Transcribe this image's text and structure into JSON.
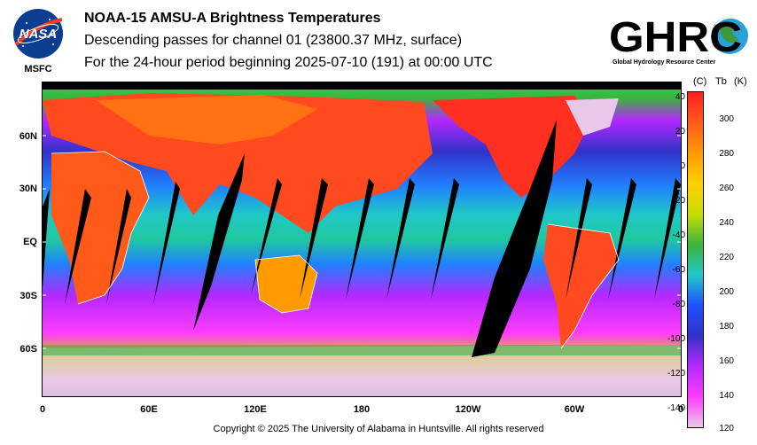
{
  "header": {
    "title": "NOAA-15 AMSU-A Brightness Temperatures",
    "subtitle": "Descending passes for channel 01 (23800.37 MHz, surface)",
    "period": "For the 24-hour period beginning 2025-07-10 (191) at 00:00 UTC"
  },
  "logos": {
    "nasa_text": "NASA",
    "msfc_text": "MSFC",
    "ghrc_text": "GHRC",
    "ghrc_caption": "Global Hydrology Resource Center"
  },
  "map": {
    "lat_labels": [
      "60N",
      "30N",
      "EQ",
      "30S",
      "60S"
    ],
    "lon_labels": [
      "0",
      "60E",
      "120E",
      "180",
      "120W",
      "60W",
      "0"
    ],
    "no_data_color": "#000000",
    "coastline_color": "#ffffff"
  },
  "colorbar": {
    "unit_celsius": "(C)",
    "symbol": "Tb",
    "unit_kelvin": "(K)",
    "celsius_ticks": [
      "40",
      "20",
      "0",
      "-20",
      "-40",
      "-60",
      "-80",
      "-100",
      "-120",
      "-140"
    ],
    "kelvin_ticks": [
      "300",
      "280",
      "260",
      "240",
      "220",
      "200",
      "180",
      "160",
      "140",
      "120"
    ],
    "colors": [
      "#ff2020",
      "#ff5a1a",
      "#ff9a00",
      "#ffd000",
      "#c8dc00",
      "#3cb43c",
      "#20c8c8",
      "#2050ff",
      "#3232c8",
      "#b428ff",
      "#ff3cff",
      "#e8c8e8"
    ]
  },
  "footer": {
    "copyright": "Copyright © 2025 The University of Alabama in Huntsville.  All rights reserved"
  }
}
